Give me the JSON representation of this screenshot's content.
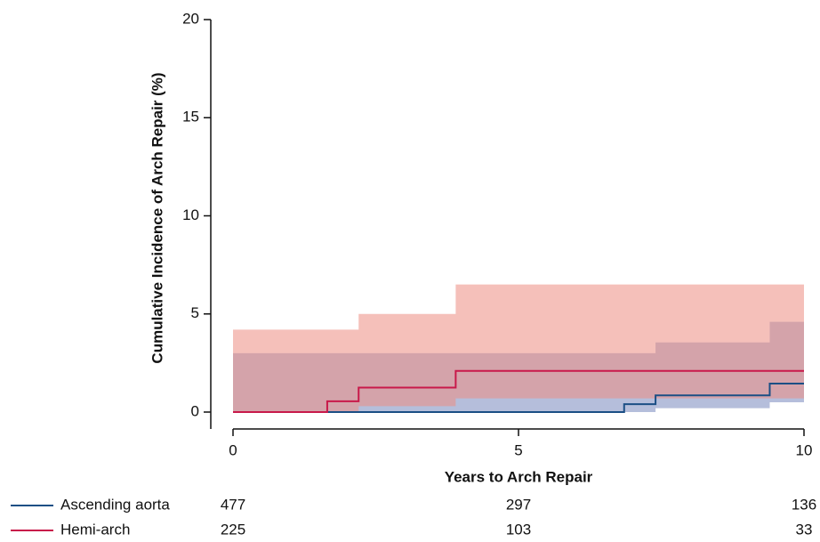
{
  "chart_data": {
    "type": "step",
    "xlabel": "Years to Arch Repair",
    "ylabel": "Cumulative Incidence of Arch Repair (%)",
    "xlim": [
      0,
      10
    ],
    "xticks": [
      0,
      5,
      10
    ],
    "ylim": [
      0,
      20
    ],
    "yticks": [
      0,
      5,
      10,
      15,
      20
    ],
    "at_risk_x": [
      0,
      5,
      10
    ],
    "series": [
      {
        "name": "Ascending aorta",
        "color": "#1b4f85",
        "band_color": "rgba(90,110,175,0.45)",
        "x": [
          0,
          2.2,
          6.85,
          7.4,
          9.4,
          10
        ],
        "values": [
          0,
          0,
          0.4,
          0.85,
          1.45,
          1.45
        ],
        "lower": [
          0,
          0,
          0,
          0.2,
          0.5,
          0.5
        ],
        "upper": [
          3.0,
          3.0,
          3.0,
          3.55,
          4.6,
          4.6
        ],
        "at_risk": [
          477,
          297,
          136
        ]
      },
      {
        "name": "Hemi-arch",
        "color": "#c8194a",
        "band_color": "rgba(236,140,130,0.55)",
        "x": [
          0,
          1.65,
          2.2,
          3.9,
          10
        ],
        "values": [
          0,
          0.55,
          1.25,
          2.1,
          2.1
        ],
        "lower": [
          0,
          0,
          0.3,
          0.7,
          0.7
        ],
        "upper": [
          4.2,
          4.2,
          5.0,
          6.5,
          6.5
        ],
        "at_risk": [
          225,
          103,
          33
        ]
      }
    ]
  }
}
